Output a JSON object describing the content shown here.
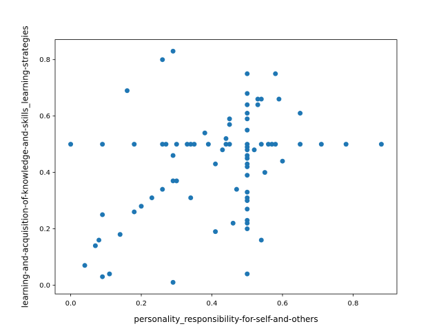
{
  "chart_data": {
    "type": "scatter",
    "title": "",
    "xlabel": "personality_responsibility-for-self-and-others",
    "ylabel": "learning-and-acquisition-of-knowledge-and-skills_learning-strategies",
    "xlim": [
      -0.044,
      0.924
    ],
    "ylim": [
      -0.031,
      0.871
    ],
    "xticks": [
      0.0,
      0.2,
      0.4,
      0.6,
      0.8
    ],
    "xtick_labels": [
      "0.0",
      "0.2",
      "0.4",
      "0.6",
      "0.8"
    ],
    "yticks": [
      0.0,
      0.2,
      0.4,
      0.6,
      0.8
    ],
    "ytick_labels": [
      "0.0",
      "0.2",
      "0.4",
      "0.6",
      "0.8"
    ],
    "grid": false,
    "marker_color": "#1f77b4",
    "points": [
      [
        0.0,
        0.5
      ],
      [
        0.04,
        0.07
      ],
      [
        0.07,
        0.14
      ],
      [
        0.08,
        0.16
      ],
      [
        0.09,
        0.5
      ],
      [
        0.09,
        0.25
      ],
      [
        0.09,
        0.03
      ],
      [
        0.11,
        0.04
      ],
      [
        0.14,
        0.18
      ],
      [
        0.16,
        0.69
      ],
      [
        0.18,
        0.5
      ],
      [
        0.18,
        0.26
      ],
      [
        0.2,
        0.28
      ],
      [
        0.23,
        0.31
      ],
      [
        0.26,
        0.8
      ],
      [
        0.26,
        0.5
      ],
      [
        0.26,
        0.34
      ],
      [
        0.27,
        0.5
      ],
      [
        0.29,
        0.83
      ],
      [
        0.29,
        0.46
      ],
      [
        0.29,
        0.37
      ],
      [
        0.29,
        0.01
      ],
      [
        0.3,
        0.5
      ],
      [
        0.3,
        0.37
      ],
      [
        0.33,
        0.5
      ],
      [
        0.34,
        0.5
      ],
      [
        0.34,
        0.31
      ],
      [
        0.35,
        0.5
      ],
      [
        0.38,
        0.54
      ],
      [
        0.39,
        0.5
      ],
      [
        0.41,
        0.43
      ],
      [
        0.41,
        0.19
      ],
      [
        0.43,
        0.48
      ],
      [
        0.44,
        0.52
      ],
      [
        0.44,
        0.5
      ],
      [
        0.45,
        0.59
      ],
      [
        0.45,
        0.57
      ],
      [
        0.45,
        0.5
      ],
      [
        0.46,
        0.22
      ],
      [
        0.47,
        0.34
      ],
      [
        0.5,
        0.75
      ],
      [
        0.5,
        0.68
      ],
      [
        0.5,
        0.64
      ],
      [
        0.5,
        0.61
      ],
      [
        0.5,
        0.59
      ],
      [
        0.5,
        0.55
      ],
      [
        0.5,
        0.5
      ],
      [
        0.5,
        0.49
      ],
      [
        0.5,
        0.48
      ],
      [
        0.5,
        0.46
      ],
      [
        0.5,
        0.45
      ],
      [
        0.5,
        0.43
      ],
      [
        0.5,
        0.42
      ],
      [
        0.5,
        0.39
      ],
      [
        0.5,
        0.33
      ],
      [
        0.5,
        0.31
      ],
      [
        0.5,
        0.3
      ],
      [
        0.5,
        0.27
      ],
      [
        0.5,
        0.23
      ],
      [
        0.5,
        0.22
      ],
      [
        0.5,
        0.2
      ],
      [
        0.5,
        0.04
      ],
      [
        0.52,
        0.48
      ],
      [
        0.53,
        0.66
      ],
      [
        0.53,
        0.64
      ],
      [
        0.54,
        0.66
      ],
      [
        0.54,
        0.5
      ],
      [
        0.54,
        0.16
      ],
      [
        0.55,
        0.4
      ],
      [
        0.56,
        0.5
      ],
      [
        0.57,
        0.5
      ],
      [
        0.58,
        0.75
      ],
      [
        0.58,
        0.5
      ],
      [
        0.59,
        0.66
      ],
      [
        0.6,
        0.44
      ],
      [
        0.65,
        0.61
      ],
      [
        0.65,
        0.5
      ],
      [
        0.71,
        0.5
      ],
      [
        0.78,
        0.5
      ],
      [
        0.88,
        0.5
      ]
    ]
  }
}
